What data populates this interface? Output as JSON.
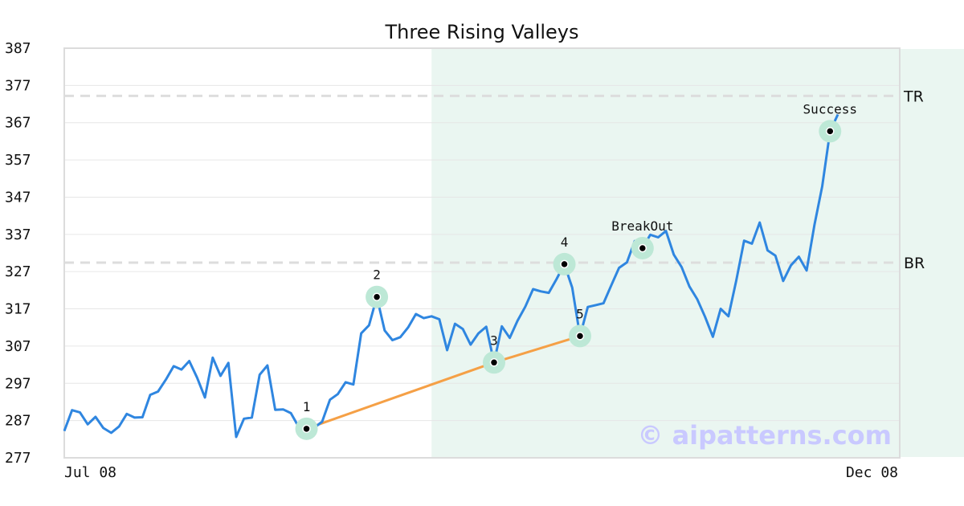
{
  "chart_data": {
    "type": "line",
    "title": "Three Rising Valleys",
    "xlabel": "",
    "ylabel": "",
    "ylim": [
      277,
      387
    ],
    "y_ticks": [
      387,
      377,
      367,
      357,
      347,
      337,
      327,
      317,
      307,
      297,
      287,
      277
    ],
    "x_tick_labels": [
      "Jul 08",
      "Dec 08"
    ],
    "grid": "horizontal",
    "line_color": "#2f86e0",
    "highlight_color": "#eaf6f1",
    "marker_halo_color": "#bde8d6",
    "trendline_color": "#f5a046",
    "highlight_range": [
      47,
      164
    ],
    "series": [
      {
        "values": [
          284.2,
          289.8,
          289.2,
          286.0,
          288.0,
          285.0,
          283.7,
          285.4,
          288.8,
          287.8,
          287.9,
          293.9,
          294.8,
          298.0,
          301.6,
          300.7,
          303.0,
          298.5,
          293.2,
          303.9,
          299.0,
          302.5,
          282.6,
          287.5,
          287.8,
          299.3,
          301.8,
          289.9,
          290.0,
          289.0,
          285.3,
          284.8,
          285.1,
          286.7,
          292.6,
          294.1,
          297.3,
          296.7,
          310.4,
          312.6,
          320.2,
          311.2,
          308.6,
          309.4,
          312.0,
          315.6,
          314.5,
          315.0,
          314.2,
          305.9,
          313.0,
          311.6,
          307.4,
          310.4,
          312.2,
          302.6,
          312.3,
          309.2,
          313.8,
          317.6,
          322.3,
          321.7,
          321.3,
          325.0,
          329.0,
          322.7,
          309.7,
          317.5,
          318.0,
          318.5,
          323.3,
          328.0,
          329.5,
          335.2,
          333.3,
          336.9,
          336.2,
          337.9,
          331.6,
          328.2,
          323.0,
          319.6,
          314.9,
          309.5,
          317.0,
          315.0,
          324.6,
          335.3,
          334.5,
          340.2,
          332.7,
          331.3,
          324.5,
          328.7,
          331.0,
          327.3,
          339.5,
          349.9,
          364.7,
          369.2
        ]
      }
    ],
    "marked_points": [
      {
        "label": "1",
        "value": 284.8
      },
      {
        "label": "2",
        "value": 320.2
      },
      {
        "label": "3",
        "value": 302.6
      },
      {
        "label": "4",
        "value": 329.0
      },
      {
        "label": "5",
        "value": 309.7
      },
      {
        "label": "BreakOut",
        "value": 333.3
      },
      {
        "label": "Success",
        "value": 364.7
      }
    ],
    "reference_lines": [
      {
        "label": "TR",
        "value": 374.2
      },
      {
        "label": "BR",
        "value": 329.4
      }
    ],
    "trendline_points": [
      "1",
      "3",
      "5"
    ],
    "watermark": "© aipatterns.com"
  }
}
